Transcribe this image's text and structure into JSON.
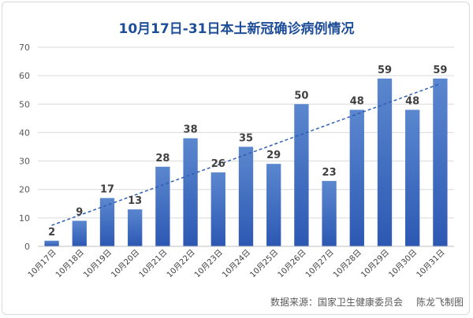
{
  "chart_data": {
    "type": "bar",
    "title": "10月17日-31日本土新冠确诊病例情况",
    "categories": [
      "10月17日",
      "10月18日",
      "10月19日",
      "10月20日",
      "10月21日",
      "10月22日",
      "10月23日",
      "10月24日",
      "10月25日",
      "10月26日",
      "10月27日",
      "10月28日",
      "10月29日",
      "10月30日",
      "10月31日"
    ],
    "values": [
      2,
      9,
      17,
      13,
      28,
      38,
      26,
      35,
      29,
      50,
      23,
      48,
      59,
      48,
      59
    ],
    "ylim": [
      0,
      70
    ],
    "yticks": [
      0,
      10,
      20,
      30,
      40,
      50,
      60,
      70
    ],
    "xlabel": "",
    "ylabel": "",
    "grid": true,
    "trendline": "linear",
    "colors": {
      "bar_top": "#5b87cf",
      "bar_bottom": "#2c58b3",
      "trend": "#2f5fb5",
      "title": "#1f4e99"
    }
  },
  "footer": {
    "source": "数据来源：国家卫生健康委员会",
    "credit": "陈龙飞制图"
  }
}
